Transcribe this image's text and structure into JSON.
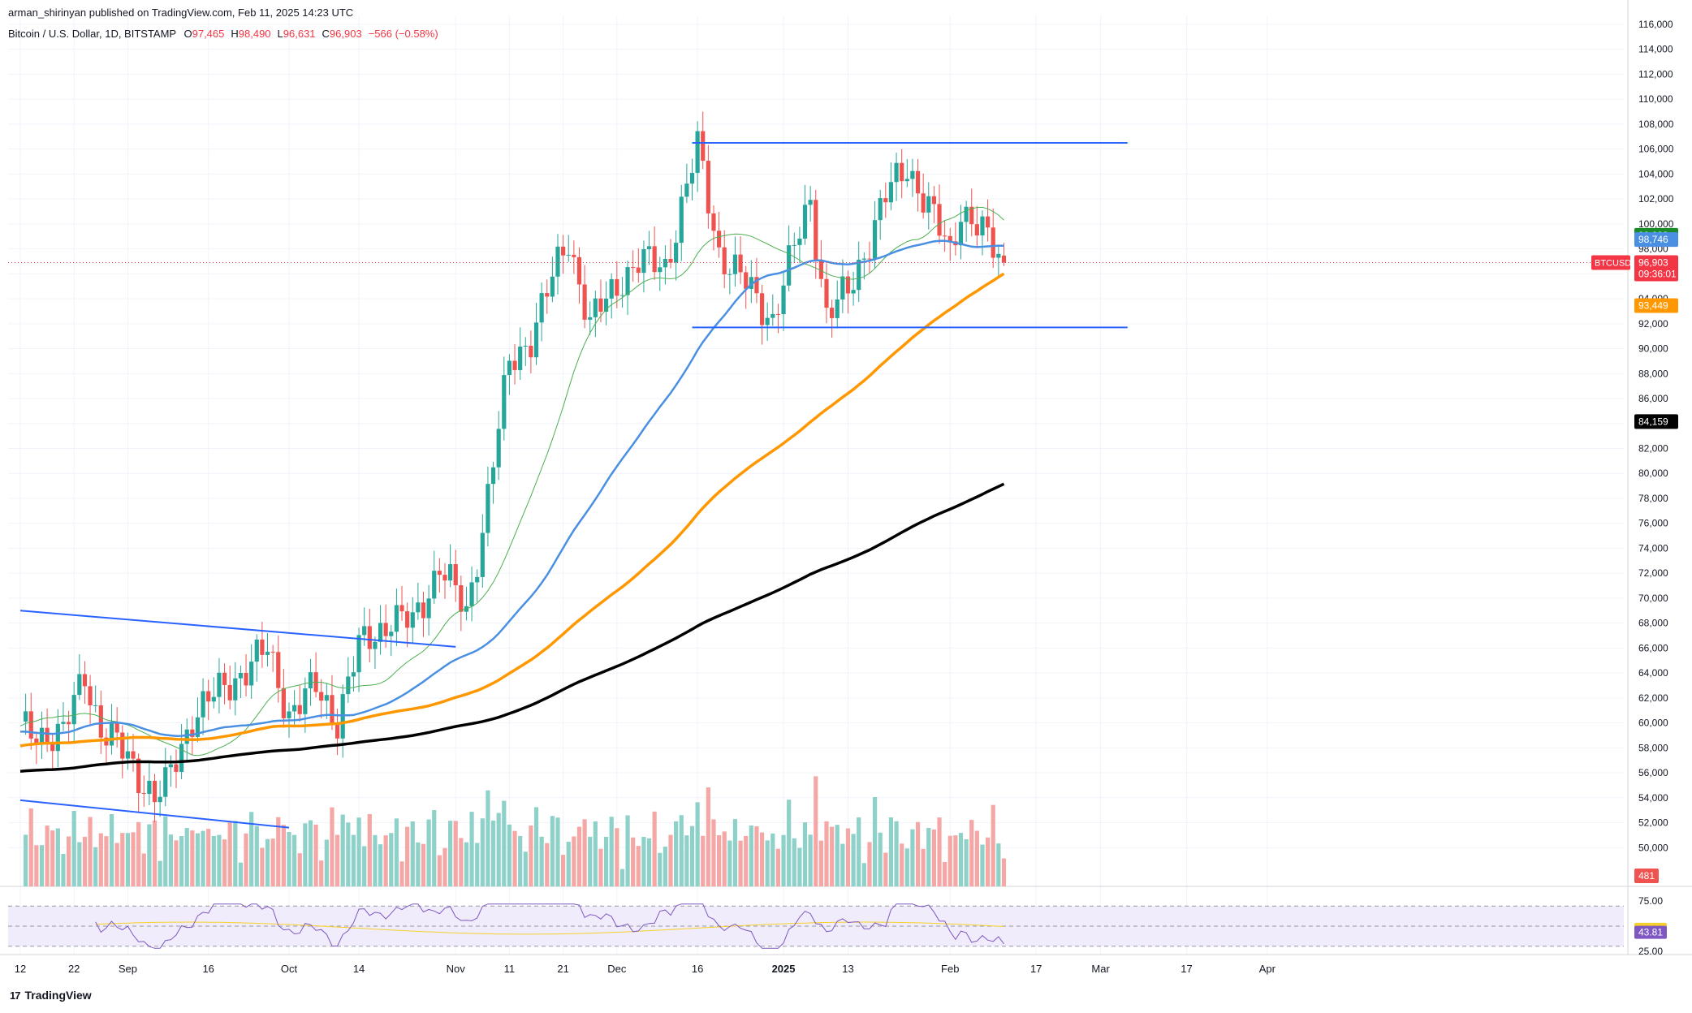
{
  "header": {
    "published_by": "arman_shirinyan published on TradingView.com, Feb 11, 2025 14:23 UTC",
    "symbol": "Bitcoin / U.S. Dollar, 1D, BITSTAMP",
    "ohlc": [
      {
        "label": "O",
        "value": "97,465"
      },
      {
        "label": "H",
        "value": "98,490"
      },
      {
        "label": "L",
        "value": "96,631"
      },
      {
        "label": "C",
        "value": "96,903"
      },
      {
        "label": "",
        "value": "−566 (−0.58%)"
      }
    ]
  },
  "brand": {
    "name": "TradingView",
    "logo": "17"
  },
  "colors": {
    "up": "#26a69a",
    "down": "#ef5350",
    "vol_up": "#8dd1c9",
    "vol_down": "#f5a7a5",
    "ma_fast": "#4caf50",
    "ma_mid": "#4a90e2",
    "ma_slow": "#ff9800",
    "ma_long": "#000000",
    "trendline": "#2962ff",
    "rsi_line": "#7e57c2",
    "rsi_ma": "#f7d02c",
    "rsi_band": "#f0ecfb"
  },
  "chart_data": {
    "type": "candlestick",
    "symbol": "BTCUSD",
    "interval": "1D",
    "exchange": "BITSTAMP",
    "ylim": [
      48000,
      116000
    ],
    "y_ticks": [
      50000,
      52000,
      54000,
      56000,
      58000,
      60000,
      62000,
      64000,
      66000,
      68000,
      70000,
      72000,
      74000,
      76000,
      78000,
      80000,
      82000,
      84000,
      86000,
      88000,
      90000,
      92000,
      94000,
      96000,
      98000,
      100000,
      102000,
      104000,
      106000,
      108000,
      110000,
      112000,
      114000,
      116000
    ],
    "x_start": "2024-08-12",
    "x_ticks": [
      {
        "date": "2024-08-12",
        "label": "12",
        "bold": false
      },
      {
        "date": "2024-08-22",
        "label": "22",
        "bold": false
      },
      {
        "date": "2024-09-01",
        "label": "Sep",
        "bold": false
      },
      {
        "date": "2024-09-16",
        "label": "16",
        "bold": false
      },
      {
        "date": "2024-10-01",
        "label": "Oct",
        "bold": false
      },
      {
        "date": "2024-10-14",
        "label": "14",
        "bold": false
      },
      {
        "date": "2024-11-01",
        "label": "Nov",
        "bold": false
      },
      {
        "date": "2024-11-11",
        "label": "11",
        "bold": false
      },
      {
        "date": "2024-11-21",
        "label": "21",
        "bold": false
      },
      {
        "date": "2024-12-01",
        "label": "Dec",
        "bold": false
      },
      {
        "date": "2024-12-16",
        "label": "16",
        "bold": false
      },
      {
        "date": "2025-01-01",
        "label": "2025",
        "bold": true
      },
      {
        "date": "2025-01-13",
        "label": "13",
        "bold": false
      },
      {
        "date": "2025-02-01",
        "label": "Feb",
        "bold": false
      },
      {
        "date": "2025-02-17",
        "label": "17",
        "bold": false
      },
      {
        "date": "2025-03-01",
        "label": "Mar",
        "bold": false
      },
      {
        "date": "2025-03-17",
        "label": "17",
        "bold": false
      },
      {
        "date": "2025-04-01",
        "label": "Apr",
        "bold": false
      }
    ],
    "close_series": [
      {
        "date": "2024-08-12",
        "close": 59400
      },
      {
        "date": "2024-08-20",
        "close": 59000
      },
      {
        "date": "2024-08-24",
        "close": 64100
      },
      {
        "date": "2024-08-27",
        "close": 59400
      },
      {
        "date": "2024-09-01",
        "close": 57300
      },
      {
        "date": "2024-09-06",
        "close": 53900
      },
      {
        "date": "2024-09-08",
        "close": 54800
      },
      {
        "date": "2024-09-13",
        "close": 60500
      },
      {
        "date": "2024-09-19",
        "close": 62900
      },
      {
        "date": "2024-09-27",
        "close": 65800
      },
      {
        "date": "2024-10-01",
        "close": 60800
      },
      {
        "date": "2024-10-06",
        "close": 62800
      },
      {
        "date": "2024-10-10",
        "close": 60300
      },
      {
        "date": "2024-10-14",
        "close": 66000
      },
      {
        "date": "2024-10-20",
        "close": 68400
      },
      {
        "date": "2024-10-24",
        "close": 67900
      },
      {
        "date": "2024-10-29",
        "close": 72700
      },
      {
        "date": "2024-11-03",
        "close": 68700
      },
      {
        "date": "2024-11-06",
        "close": 75800
      },
      {
        "date": "2024-11-11",
        "close": 88700
      },
      {
        "date": "2024-11-15",
        "close": 91000
      },
      {
        "date": "2024-11-22",
        "close": 98900
      },
      {
        "date": "2024-11-26",
        "close": 91900
      },
      {
        "date": "2024-12-02",
        "close": 95800
      },
      {
        "date": "2024-12-05",
        "close": 96900
      },
      {
        "date": "2024-12-10",
        "close": 96600
      },
      {
        "date": "2024-12-16",
        "close": 106100
      },
      {
        "date": "2024-12-20",
        "close": 97800
      },
      {
        "date": "2024-12-30",
        "close": 92400
      },
      {
        "date": "2025-01-06",
        "close": 102100
      },
      {
        "date": "2025-01-09",
        "close": 92600
      },
      {
        "date": "2025-01-13",
        "close": 94500
      },
      {
        "date": "2025-01-20",
        "close": 102100
      },
      {
        "date": "2025-01-24",
        "close": 104800
      },
      {
        "date": "2025-01-27",
        "close": 102100
      },
      {
        "date": "2025-02-01",
        "close": 97700
      },
      {
        "date": "2025-02-03",
        "close": 101400
      },
      {
        "date": "2025-02-11",
        "close": 96903
      }
    ],
    "ohlc_last": {
      "date": "2025-02-11",
      "open": 97465,
      "high": 98490,
      "low": 96631,
      "close": 96903,
      "change": -566,
      "change_pct": -0.58
    },
    "annotations": [
      {
        "type": "trendline",
        "from": {
          "date": "2024-08-12",
          "price": 69000
        },
        "to": {
          "date": "2024-11-01",
          "price": 66100
        }
      },
      {
        "type": "trendline",
        "from": {
          "date": "2024-08-12",
          "price": 53800
        },
        "to": {
          "date": "2024-10-01",
          "price": 51600
        }
      },
      {
        "type": "horizontal_segment",
        "from": "2024-12-15",
        "to": "2025-03-06",
        "price": 106500
      },
      {
        "type": "horizontal_segment",
        "from": "2024-12-15",
        "to": "2025-03-06",
        "price": 91700
      }
    ],
    "price_labels": [
      {
        "text": "99,093",
        "value": 99093,
        "bg": "#1b8a28",
        "fg": "#ffffff"
      },
      {
        "text": "98,746",
        "value": 98746,
        "bg": "#4a90e2",
        "fg": "#ffffff"
      },
      {
        "text": "96,903",
        "value": 96903,
        "bg": "#f23645",
        "fg": "#ffffff",
        "symbol": "BTCUSD",
        "countdown": "09:36:01"
      },
      {
        "text": "93,449",
        "value": 93449,
        "bg": "#ff9800",
        "fg": "#ffffff"
      },
      {
        "text": "84,159",
        "value": 84159,
        "bg": "#000000",
        "fg": "#ffffff"
      }
    ],
    "volume_last_label": "481",
    "rsi": {
      "ticks": [
        "75.00",
        "25.00"
      ],
      "ylim": [
        25,
        75
      ],
      "band": [
        30,
        70
      ],
      "value": 43.81,
      "value_label": "43.81",
      "ma": 46.91,
      "ma_label": "46.91"
    },
    "grid": true
  }
}
